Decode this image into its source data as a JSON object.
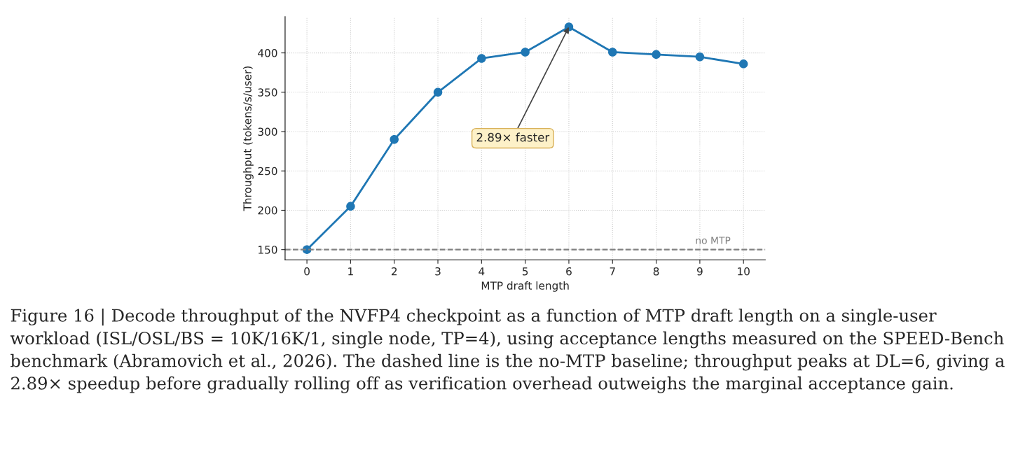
{
  "chart_data": {
    "type": "line",
    "xlabel": "MTP draft length",
    "ylabel": "Throughput (tokens/s/user)",
    "x": [
      0,
      1,
      2,
      3,
      4,
      5,
      6,
      7,
      8,
      9,
      10
    ],
    "series": [
      {
        "color": "#1f77b4",
        "values": [
          150,
          205,
          290,
          350,
          393,
          401,
          433,
          401,
          398,
          395,
          386
        ]
      }
    ],
    "xlim": [
      -0.5,
      10.5
    ],
    "xticks": [
      0,
      1,
      2,
      3,
      4,
      5,
      6,
      7,
      8,
      9,
      10
    ],
    "ylim": [
      137,
      446
    ],
    "yticks": [
      150,
      200,
      250,
      300,
      350,
      400
    ],
    "grid": true,
    "marker": "circle",
    "line_style": "solid",
    "ref_lines": [
      {
        "axis": "y",
        "value": 150,
        "label": "no MTP",
        "color": "#808080",
        "line_style": "dashed"
      }
    ],
    "annotations": [
      {
        "text": "2.89× faster",
        "x": 6,
        "y": 433
      },
      "Figure 16 | Decode throughput of the NVFP4 checkpoint as a function of MTP draft length on a single-user workload (ISL/OSL/BS = 10K/16K/1, single node, TP=4), using acceptance lengths measured on the SPEED-Bench benchmark (Abramovich et al., 2026). The dashed line is the no-MTP baseline; throughput peaks at DL=6, giving a 2.89× speedup before gradually rolling off as verification overhead outweighs the marginal acceptance gain."
    ]
  }
}
